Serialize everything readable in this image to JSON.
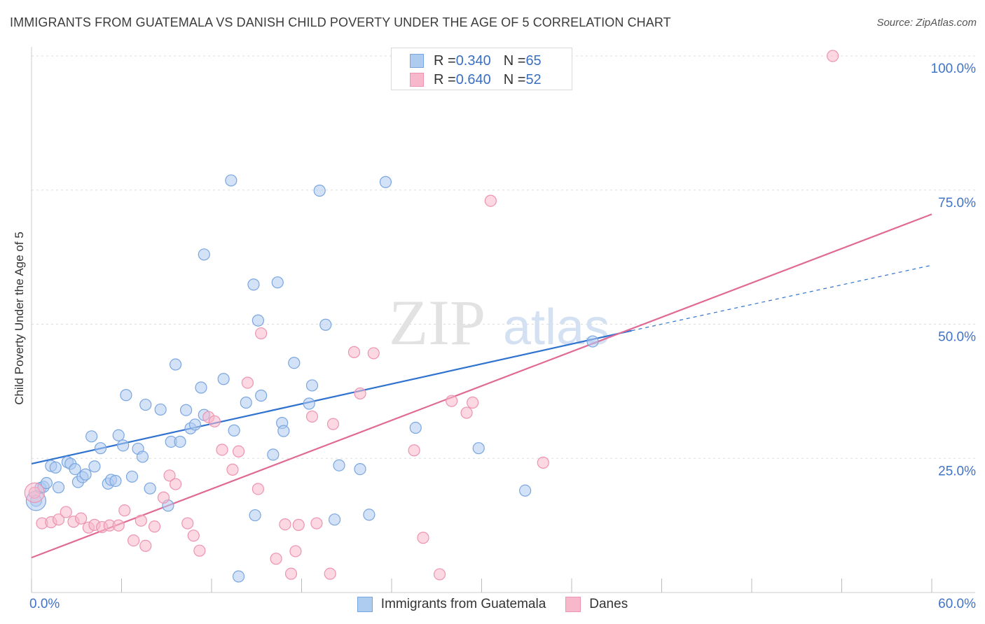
{
  "header": {
    "title": "IMMIGRANTS FROM GUATEMALA VS DANISH CHILD POVERTY UNDER THE AGE OF 5 CORRELATION CHART",
    "source": "Source: ZipAtlas.com"
  },
  "legend_top": {
    "rows": [
      {
        "r_label": "R = ",
        "r_value": "0.340",
        "n_label": "N = ",
        "n_value": "65"
      },
      {
        "r_label": "R = ",
        "r_value": "0.640",
        "n_label": "N = ",
        "n_value": "52"
      }
    ]
  },
  "legend_bottom": {
    "items": [
      "Immigrants from Guatemala",
      "Danes"
    ]
  },
  "watermark": {
    "zip": "ZIP",
    "atlas": "atlas"
  },
  "colors": {
    "blue_fill": "#aecbf0",
    "blue_stroke": "#7aa6e0",
    "blue_line": "#2f72d0",
    "pink_fill": "#f7b8cb",
    "pink_stroke": "#ee93b1",
    "pink_line": "#e06a94",
    "tick_label": "#3f74c9",
    "grid": "#dddddd"
  },
  "chart_data": {
    "type": "scatter",
    "title": "IMMIGRANTS FROM GUATEMALA VS DANISH CHILD POVERTY UNDER THE AGE OF 5 CORRELATION CHART",
    "xlabel": "",
    "ylabel": "Child Poverty Under the Age of 5",
    "xlim": [
      0,
      60
    ],
    "ylim": [
      0,
      100
    ],
    "x_tick_labels": [
      "0.0%",
      "60.0%"
    ],
    "y_ticks": [
      25,
      50,
      75,
      100
    ],
    "y_tick_labels": [
      "25.0%",
      "50.0%",
      "75.0%",
      "100.0%"
    ],
    "grid": true,
    "legend_placement": "top-center",
    "series": [
      {
        "name": "Immigrants from Guatemala",
        "color": "#aecbf0",
        "points": [
          [
            0.3,
            17.1
          ],
          [
            0.6,
            19.5
          ],
          [
            0.8,
            19.7
          ],
          [
            1.0,
            20.4
          ],
          [
            1.3,
            23.6
          ],
          [
            1.6,
            23.3
          ],
          [
            1.8,
            19.6
          ],
          [
            2.4,
            24.3
          ],
          [
            2.6,
            24.0
          ],
          [
            2.9,
            23.0
          ],
          [
            3.1,
            20.6
          ],
          [
            3.4,
            21.5
          ],
          [
            3.6,
            22.0
          ],
          [
            4.0,
            29.1
          ],
          [
            4.2,
            23.5
          ],
          [
            4.6,
            26.9
          ],
          [
            5.1,
            20.3
          ],
          [
            5.3,
            21.0
          ],
          [
            5.6,
            20.8
          ],
          [
            5.8,
            29.3
          ],
          [
            6.1,
            27.4
          ],
          [
            6.3,
            36.8
          ],
          [
            6.7,
            21.6
          ],
          [
            7.1,
            26.8
          ],
          [
            7.4,
            25.3
          ],
          [
            7.6,
            35.0
          ],
          [
            7.9,
            19.4
          ],
          [
            8.6,
            34.1
          ],
          [
            9.1,
            16.2
          ],
          [
            9.3,
            28.1
          ],
          [
            9.6,
            42.5
          ],
          [
            9.9,
            28.1
          ],
          [
            10.3,
            34.0
          ],
          [
            10.6,
            30.6
          ],
          [
            10.9,
            31.3
          ],
          [
            11.3,
            38.2
          ],
          [
            11.5,
            33.1
          ],
          [
            12.8,
            39.8
          ],
          [
            13.3,
            76.8
          ],
          [
            13.5,
            30.2
          ],
          [
            13.8,
            3.0
          ],
          [
            14.3,
            35.4
          ],
          [
            14.8,
            57.4
          ],
          [
            14.9,
            14.4
          ],
          [
            15.1,
            50.7
          ],
          [
            15.3,
            36.7
          ],
          [
            16.1,
            25.7
          ],
          [
            16.4,
            57.8
          ],
          [
            16.7,
            31.6
          ],
          [
            16.8,
            30.1
          ],
          [
            11.5,
            63.0
          ],
          [
            17.5,
            42.8
          ],
          [
            18.5,
            35.2
          ],
          [
            18.7,
            38.6
          ],
          [
            19.2,
            74.9
          ],
          [
            19.6,
            49.9
          ],
          [
            20.2,
            13.6
          ],
          [
            20.5,
            23.7
          ],
          [
            21.9,
            23.0
          ],
          [
            22.5,
            14.5
          ],
          [
            23.6,
            76.5
          ],
          [
            25.6,
            30.7
          ],
          [
            29.8,
            26.9
          ],
          [
            32.9,
            19.0
          ],
          [
            37.4,
            46.8
          ]
        ]
      },
      {
        "name": "Danes",
        "color": "#f7b8cb",
        "points": [
          [
            0.2,
            18.6
          ],
          [
            0.7,
            12.9
          ],
          [
            1.3,
            13.1
          ],
          [
            1.8,
            13.6
          ],
          [
            2.3,
            15.0
          ],
          [
            2.8,
            13.2
          ],
          [
            3.3,
            13.8
          ],
          [
            3.8,
            12.1
          ],
          [
            4.2,
            12.6
          ],
          [
            4.7,
            12.2
          ],
          [
            5.2,
            12.5
          ],
          [
            5.8,
            12.5
          ],
          [
            6.2,
            15.3
          ],
          [
            6.8,
            9.7
          ],
          [
            7.3,
            13.4
          ],
          [
            7.6,
            8.7
          ],
          [
            8.2,
            12.3
          ],
          [
            8.8,
            17.7
          ],
          [
            9.2,
            21.8
          ],
          [
            9.6,
            20.2
          ],
          [
            10.4,
            12.9
          ],
          [
            10.8,
            10.6
          ],
          [
            11.2,
            7.8
          ],
          [
            11.8,
            32.7
          ],
          [
            12.2,
            31.9
          ],
          [
            12.7,
            26.6
          ],
          [
            13.4,
            22.9
          ],
          [
            13.8,
            26.3
          ],
          [
            14.4,
            39.1
          ],
          [
            15.3,
            48.3
          ],
          [
            15.1,
            19.3
          ],
          [
            16.3,
            6.3
          ],
          [
            16.9,
            12.7
          ],
          [
            17.3,
            3.5
          ],
          [
            17.6,
            7.7
          ],
          [
            17.8,
            12.6
          ],
          [
            18.7,
            32.8
          ],
          [
            19.0,
            12.9
          ],
          [
            19.9,
            3.5
          ],
          [
            20.1,
            31.4
          ],
          [
            21.5,
            44.8
          ],
          [
            21.9,
            37.1
          ],
          [
            22.8,
            44.6
          ],
          [
            25.5,
            26.5
          ],
          [
            26.1,
            10.2
          ],
          [
            27.2,
            3.4
          ],
          [
            28.0,
            35.7
          ],
          [
            29.0,
            33.5
          ],
          [
            29.4,
            35.4
          ],
          [
            30.6,
            73.0
          ],
          [
            34.1,
            24.2
          ],
          [
            53.4,
            100.0
          ]
        ]
      }
    ],
    "trend_lines": [
      {
        "series": "Immigrants from Guatemala",
        "x_start": 0,
        "y_start": 24.0,
        "x_end": 40,
        "y_end": 48.8,
        "dashed_to_x": 60,
        "dashed_to_y": 61.0
      },
      {
        "series": "Danes",
        "x_start": 0,
        "y_start": 6.5,
        "x_end": 60,
        "y_end": 70.5
      }
    ],
    "legend": [
      {
        "series": "Immigrants from Guatemala",
        "R": "0.340",
        "N": "65"
      },
      {
        "series": "Danes",
        "R": "0.640",
        "N": "52"
      }
    ]
  }
}
